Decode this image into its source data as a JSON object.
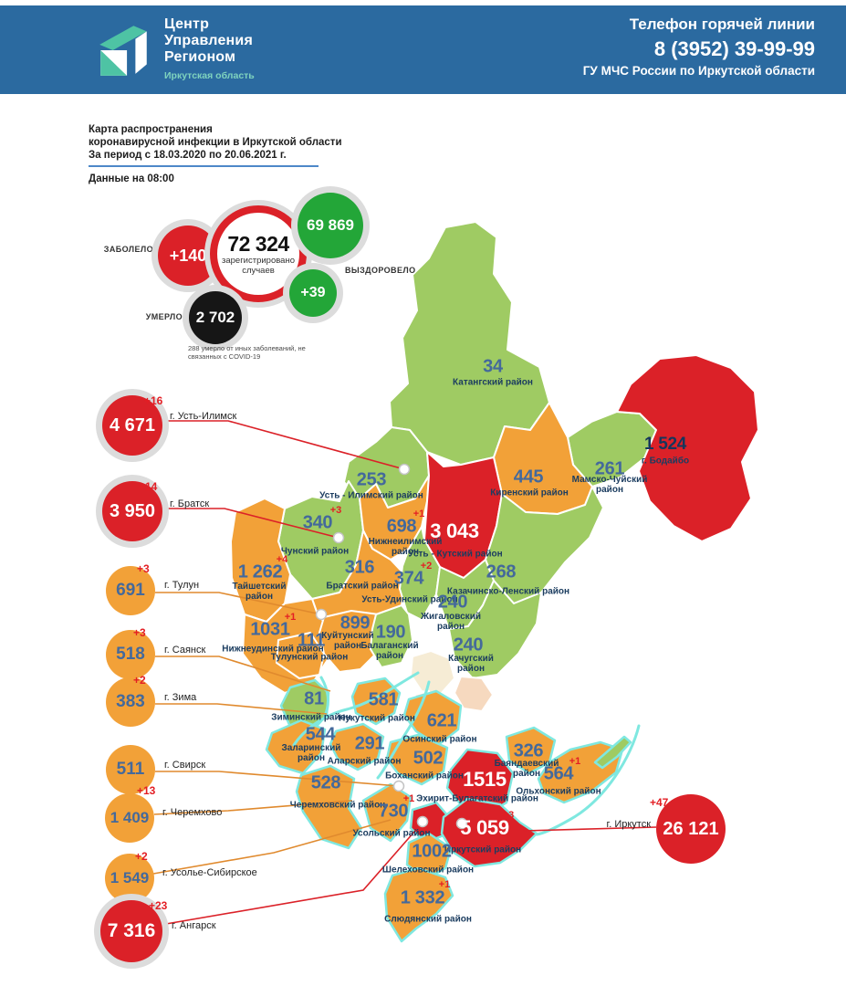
{
  "header": {
    "org_line1": "Центр",
    "org_line2": "Управления",
    "org_line3": "Регионом",
    "org_region": "Иркутская область",
    "hotline_title": "Телефон горячей линии",
    "hotline_phone": "8 (3952) 39-99-99",
    "hotline_org": "ГУ МЧС России по Иркутской области"
  },
  "title": {
    "line1": "Карта распространения",
    "line2": "коронавирусной инфекции в Иркутской области",
    "line3": "За период с 18.03.2020 по 20.06.2021 г.",
    "data_time": "Данные на 08:00"
  },
  "stats": {
    "infected_label": "ЗАБОЛЕЛО",
    "infected_delta": "+140",
    "registered_value": "72 324",
    "registered_caption_line1": "зарегистрировано",
    "registered_caption_line2": "случаев",
    "recovered_value": "69 869",
    "recovered_label": "ВЫЗДОРОВЕЛО",
    "recovered_delta": "+39",
    "died_label": "УМЕРЛО",
    "died_value": "2 702",
    "died_note": "288 умерло от иных заболеваний, не связанных с COVID-19"
  },
  "map": {
    "regions": [
      {
        "id": "katangsky",
        "name": "Катангский район",
        "value": "34",
        "delta": null,
        "level": "low",
        "value_color": "steel"
      },
      {
        "id": "ust_ilimsky",
        "name": "Усть - Илимский район",
        "value": "253",
        "delta": null,
        "level": "low",
        "value_color": "steel"
      },
      {
        "id": "mamsko_chuysky",
        "name": "Мамско-Чуйский район",
        "value": "261",
        "delta": null,
        "level": "low",
        "value_color": "steel"
      },
      {
        "id": "kirensky",
        "name": "Киренский район",
        "value": "445",
        "delta": null,
        "level": "mid",
        "value_color": "steel"
      },
      {
        "id": "bodaibinsky",
        "name": "г. Бодайбо",
        "value": "1 524",
        "delta": null,
        "level": "high",
        "value_color": "navy"
      },
      {
        "id": "chunsky",
        "name": "Чунский район",
        "value": "340",
        "delta": "+3",
        "level": "low",
        "value_color": "steel"
      },
      {
        "id": "nizhneilimsky",
        "name": "Нижнеилимский район",
        "value": "698",
        "delta": "+1",
        "level": "mid",
        "value_color": "steel"
      },
      {
        "id": "ust_kutsky",
        "name": "Усть - Кутский район",
        "value": "3 043",
        "delta": null,
        "level": "high",
        "value_color": "white"
      },
      {
        "id": "kazachinsko_lensky",
        "name": "Казачинско-Ленский район",
        "value": "268",
        "delta": null,
        "level": "low",
        "value_color": "steel"
      },
      {
        "id": "taishetsky",
        "name": "Тайшетский район",
        "value": "1 262",
        "delta": "+4",
        "level": "mid",
        "value_color": "steel"
      },
      {
        "id": "bratsky",
        "name": "Братский район",
        "value": "316",
        "delta": null,
        "level": "mid",
        "value_color": "steel"
      },
      {
        "id": "ust_udinsky",
        "name": "Усть-Удинский район",
        "value": "374",
        "delta": "+2",
        "level": "low",
        "value_color": "steel"
      },
      {
        "id": "zhigalovsky",
        "name": "Жигаловский район",
        "value": "240",
        "delta": null,
        "level": "low",
        "value_color": "steel"
      },
      {
        "id": "nizhneudinsky",
        "name": "Нижнеудинский район",
        "value": "1031",
        "delta": "+1",
        "level": "mid",
        "value_color": "steel"
      },
      {
        "id": "kuitunsky",
        "name": "Куйтунский район",
        "value": "899",
        "delta": null,
        "level": "mid",
        "value_color": "steel"
      },
      {
        "id": "tulunsky",
        "name": "Тулунский район",
        "value": "111",
        "delta": null,
        "level": "mid",
        "value_color": "steel"
      },
      {
        "id": "balagansky",
        "name": "Балаганский район",
        "value": "190",
        "delta": null,
        "level": "low",
        "value_color": "steel"
      },
      {
        "id": "kachugsky",
        "name": "Качугский район",
        "value": "240",
        "delta": null,
        "level": "low",
        "value_color": "steel"
      },
      {
        "id": "ziminsky",
        "name": "Зиминский район",
        "value": "81",
        "delta": null,
        "level": "low",
        "value_color": "steel"
      },
      {
        "id": "nukutsky",
        "name": "Нукутский район",
        "value": "581",
        "delta": null,
        "level": "mid",
        "value_color": "steel"
      },
      {
        "id": "osinsky",
        "name": "Осинский район",
        "value": "621",
        "delta": null,
        "level": "mid",
        "value_color": "steel"
      },
      {
        "id": "zalarinsky",
        "name": "Заларинский район",
        "value": "544",
        "delta": null,
        "level": "mid",
        "value_color": "steel"
      },
      {
        "id": "alarsky",
        "name": "Аларский район",
        "value": "291",
        "delta": null,
        "level": "mid",
        "value_color": "steel"
      },
      {
        "id": "bokhansky",
        "name": "Боханский район",
        "value": "502",
        "delta": null,
        "level": "mid",
        "value_color": "steel"
      },
      {
        "id": "ekhirit_bulagatsky",
        "name": "Эхирит-Булагатский район",
        "value": "1515",
        "delta": null,
        "level": "high",
        "value_color": "white"
      },
      {
        "id": "bayandaevsky",
        "name": "Баяндаевский район",
        "value": "326",
        "delta": null,
        "level": "mid",
        "value_color": "steel"
      },
      {
        "id": "olkhonsky",
        "name": "Ольхонский район",
        "value": "564",
        "delta": "+1",
        "level": "mid",
        "value_color": "steel"
      },
      {
        "id": "cheremkhovsky",
        "name": "Черемховский район",
        "value": "528",
        "delta": null,
        "level": "mid",
        "value_color": "steel"
      },
      {
        "id": "usolsky",
        "name": "Усольский район",
        "value": "730",
        "delta": "+1",
        "level": "mid",
        "value_color": "steel"
      },
      {
        "id": "irkutsky",
        "name": "Иркутский район",
        "value": "5 059",
        "delta": "+3",
        "level": "high",
        "value_color": "white"
      },
      {
        "id": "shelekhovsky",
        "name": "Шелеховский район",
        "value": "1002",
        "delta": null,
        "level": "mid",
        "value_color": "steel"
      },
      {
        "id": "slyudyansky",
        "name": "Слюдянский район",
        "value": "1 332",
        "delta": "+1",
        "level": "mid",
        "value_color": "steel"
      }
    ],
    "cities": [
      {
        "id": "ust_ilimsk",
        "name": "г. Усть-Илимск",
        "value": "4 671",
        "delta": "+16",
        "level": "high"
      },
      {
        "id": "bratsk",
        "name": "г. Братск",
        "value": "3 950",
        "delta": "+14",
        "level": "high"
      },
      {
        "id": "tulun",
        "name": "г. Тулун",
        "value": "691",
        "delta": "+3",
        "level": "mid"
      },
      {
        "id": "sayansk",
        "name": "г. Саянск",
        "value": "518",
        "delta": "+3",
        "level": "mid"
      },
      {
        "id": "zima",
        "name": "г. Зима",
        "value": "383",
        "delta": "+2",
        "level": "mid"
      },
      {
        "id": "svirsk",
        "name": "г. Свирск",
        "value": "511",
        "delta": null,
        "level": "mid"
      },
      {
        "id": "cheremkhovo",
        "name": "г. Черемхово",
        "value": "1 409",
        "delta": "+13",
        "level": "mid"
      },
      {
        "id": "usolye",
        "name": "г. Усолье-Сибирское",
        "value": "1 549",
        "delta": "+2",
        "level": "mid"
      },
      {
        "id": "angarsk",
        "name": "г. Ангарск",
        "value": "7 316",
        "delta": "+23",
        "level": "high"
      },
      {
        "id": "irkutsk",
        "name": "г. Иркутск",
        "value": "26 121",
        "delta": "+47",
        "level": "high"
      }
    ]
  },
  "colors": {
    "header_bg": "#2B6AA0",
    "accent_teal": "#4EC3A4",
    "low": "#9FCB63",
    "mid": "#F2A138",
    "high": "#DB2128",
    "recovered": "#23A638",
    "died": "#161616",
    "value_steel": "#44699B",
    "value_navy": "#16365C",
    "name_navy": "#1C3D60",
    "delta_red": "#E31E24",
    "water": "#7FE8E0"
  }
}
